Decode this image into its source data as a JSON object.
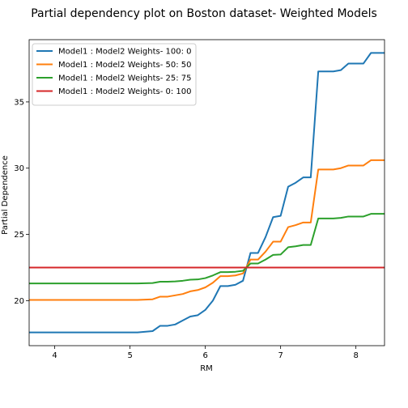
{
  "chart_data": {
    "type": "line",
    "title": "Partial dependency plot on Boston dataset- Weighted Models",
    "xlabel": "RM",
    "ylabel": "Partial Dependence",
    "xlim": [
      3.66,
      8.38
    ],
    "ylim": [
      16.6,
      39.7
    ],
    "xticks": [
      4,
      5,
      6,
      7,
      8
    ],
    "yticks": [
      20,
      25,
      30,
      35
    ],
    "grid": false,
    "legend_position": "top-left",
    "series": [
      {
        "name": "Model1 : Model2 Weights- 100: 0",
        "color": "#1f77b4",
        "x": [
          3.66,
          5.1,
          5.3,
          5.4,
          5.5,
          5.6,
          5.7,
          5.8,
          5.9,
          6.0,
          6.1,
          6.2,
          6.3,
          6.4,
          6.5,
          6.6,
          6.7,
          6.8,
          6.9,
          7.0,
          7.1,
          7.2,
          7.3,
          7.4,
          7.5,
          7.6,
          7.7,
          7.8,
          7.9,
          8.0,
          8.1,
          8.2,
          8.38
        ],
        "y": [
          17.6,
          17.6,
          17.7,
          18.1,
          18.1,
          18.2,
          18.5,
          18.8,
          18.9,
          19.3,
          20.0,
          21.1,
          21.1,
          21.2,
          21.5,
          23.6,
          23.6,
          24.8,
          26.3,
          26.4,
          28.6,
          28.9,
          29.3,
          29.3,
          37.3,
          37.3,
          37.3,
          37.4,
          37.9,
          37.9,
          37.9,
          38.7,
          38.7
        ]
      },
      {
        "name": "Model1 : Model2 Weights- 50: 50",
        "color": "#ff7f0e",
        "x": [
          3.66,
          5.1,
          5.3,
          5.4,
          5.5,
          5.6,
          5.7,
          5.8,
          5.9,
          6.0,
          6.1,
          6.2,
          6.3,
          6.4,
          6.5,
          6.6,
          6.7,
          6.8,
          6.9,
          7.0,
          7.1,
          7.2,
          7.3,
          7.4,
          7.5,
          7.6,
          7.7,
          7.8,
          7.9,
          8.0,
          8.1,
          8.2,
          8.38
        ],
        "y": [
          20.05,
          20.05,
          20.1,
          20.3,
          20.3,
          20.4,
          20.5,
          20.7,
          20.8,
          21.0,
          21.35,
          21.85,
          21.85,
          21.9,
          22.05,
          23.1,
          23.1,
          23.7,
          24.45,
          24.45,
          25.55,
          25.7,
          25.9,
          25.9,
          29.9,
          29.9,
          29.9,
          30.0,
          30.2,
          30.2,
          30.2,
          30.6,
          30.6
        ]
      },
      {
        "name": "Model1 : Model2 Weights- 25: 75",
        "color": "#2ca02c",
        "x": [
          3.66,
          5.1,
          5.3,
          5.4,
          5.5,
          5.6,
          5.7,
          5.8,
          5.9,
          6.0,
          6.1,
          6.2,
          6.3,
          6.4,
          6.5,
          6.6,
          6.7,
          6.8,
          6.9,
          7.0,
          7.1,
          7.2,
          7.3,
          7.4,
          7.5,
          7.6,
          7.7,
          7.8,
          7.9,
          8.0,
          8.1,
          8.2,
          8.38
        ],
        "y": [
          21.3,
          21.3,
          21.33,
          21.43,
          21.43,
          21.45,
          21.5,
          21.58,
          21.6,
          21.7,
          21.9,
          22.15,
          22.15,
          22.18,
          22.25,
          22.8,
          22.8,
          23.1,
          23.45,
          23.48,
          24.03,
          24.1,
          24.2,
          24.2,
          26.2,
          26.2,
          26.2,
          26.25,
          26.35,
          26.35,
          26.35,
          26.55,
          26.55
        ]
      },
      {
        "name": "Model1 : Model2 Weights- 0: 100",
        "color": "#d62728",
        "x": [
          3.66,
          8.38
        ],
        "y": [
          22.5,
          22.5
        ]
      }
    ]
  }
}
